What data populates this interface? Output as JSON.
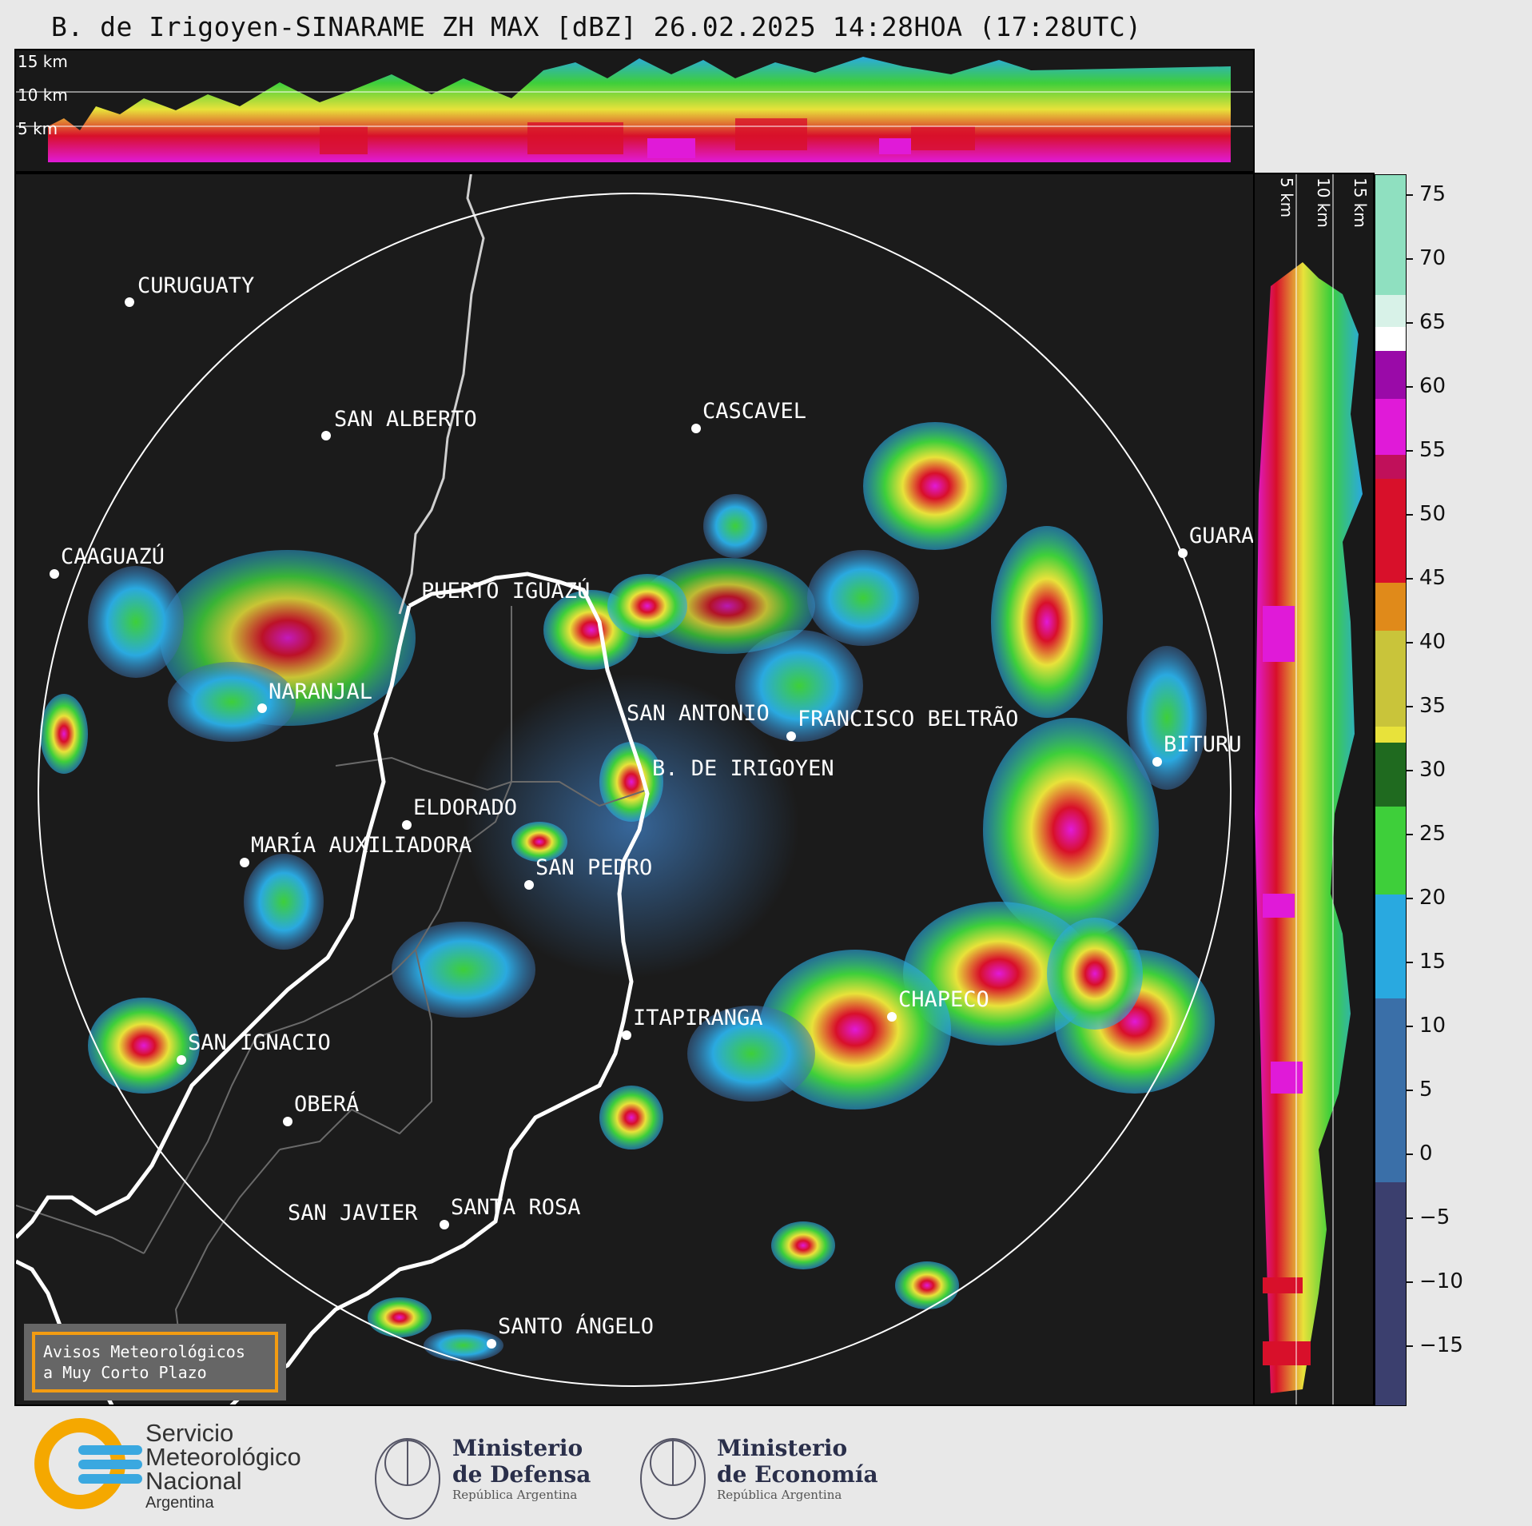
{
  "title": "B. de Irigoyen-SINARAME ZH MAX [dBZ] 26.02.2025 14:28HOA (17:28UTC)",
  "top_strip": {
    "height_labels": [
      "15 km",
      "10 km",
      "5 km"
    ]
  },
  "side_strip": {
    "height_labels": [
      "5 km",
      "10 km",
      "15 km"
    ]
  },
  "cities": [
    {
      "name": "CURUGUATY"
    },
    {
      "name": "SAN ALBERTO"
    },
    {
      "name": "CASCAVEL"
    },
    {
      "name": "CAAGUAZÚ"
    },
    {
      "name": "GUARA"
    },
    {
      "name": "PUERTO IGUAZÚ"
    },
    {
      "name": "NARANJAL"
    },
    {
      "name": "SAN ANTONIO"
    },
    {
      "name": "FRANCISCO BELTRÃO"
    },
    {
      "name": "B. DE IRIGOYEN"
    },
    {
      "name": "BITURU"
    },
    {
      "name": "ELDORADO"
    },
    {
      "name": "MARÍA AUXILIADORA"
    },
    {
      "name": "SAN PEDRO"
    },
    {
      "name": "ITAPIRANGA"
    },
    {
      "name": "CHAPECO"
    },
    {
      "name": "SAN IGNACIO"
    },
    {
      "name": "OBERÁ"
    },
    {
      "name": "SAN JAVIER"
    },
    {
      "name": "SANTA ROSA"
    },
    {
      "name": "SANTO ÁNGELO"
    }
  ],
  "colorbar": {
    "unit": "dBZ",
    "ticks": [
      "75",
      "70",
      "65",
      "60",
      "55",
      "50",
      "45",
      "40",
      "35",
      "30",
      "25",
      "20",
      "15",
      "10",
      "5",
      "0",
      "−5",
      "−10",
      "−15"
    ],
    "range": [
      -20,
      77
    ],
    "colors": {
      "low": "#3b3f6e",
      "blue": "#3a6fa8",
      "cyan": "#29a9e0",
      "green": "#3ecf3a",
      "darkgreen": "#1f6a1f",
      "yellow": "#e8e23a",
      "orange": "#e08a1a",
      "red": "#d8102a",
      "magenta": "#e01ad8",
      "purple": "#9a0aa8",
      "white": "#ffffff",
      "mint": "#8fe0c0"
    }
  },
  "warning_box": {
    "line1": "Avisos Meteorológicos",
    "line2": "a Muy Corto Plazo"
  },
  "logos": {
    "smn": {
      "line1": "Servicio",
      "line2": "Meteorológico",
      "line3": "Nacional",
      "line4": "Argentina"
    },
    "defensa": {
      "line1": "Ministerio",
      "line2": "de Defensa",
      "line3": "República Argentina"
    },
    "economia": {
      "line1": "Ministerio",
      "line2": "de Economía",
      "line3": "República Argentina"
    }
  }
}
